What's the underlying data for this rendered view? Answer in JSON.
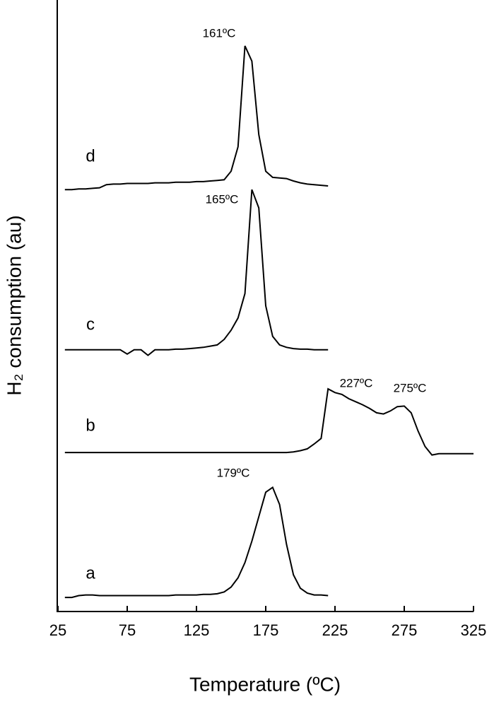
{
  "chart_data": {
    "type": "line",
    "x_label": "Temperature  (ºC)",
    "y_label": "H₂ consumption (au)",
    "xlim": [
      25,
      325
    ],
    "xticks": [
      25,
      75,
      125,
      175,
      225,
      275,
      325
    ],
    "ylim": [
      0,
      100
    ],
    "annotations": [
      "161ºC",
      "165ºC",
      "227ºC",
      "275ºC",
      "179ºC"
    ],
    "series": [
      {
        "name": "a",
        "color": "#000000",
        "x": [
          30,
          35,
          40,
          45,
          50,
          55,
          60,
          65,
          70,
          75,
          80,
          85,
          90,
          95,
          100,
          105,
          110,
          115,
          120,
          125,
          130,
          135,
          140,
          145,
          150,
          155,
          160,
          165,
          170,
          175,
          180,
          185,
          190,
          195,
          200,
          205,
          210,
          215,
          220
        ],
        "values": [
          2.3,
          2.3,
          2.6,
          2.7,
          2.7,
          2.6,
          2.6,
          2.6,
          2.6,
          2.6,
          2.6,
          2.6,
          2.6,
          2.6,
          2.6,
          2.6,
          2.7,
          2.7,
          2.7,
          2.7,
          2.8,
          2.8,
          2.9,
          3.2,
          4.0,
          5.5,
          8.0,
          11.5,
          15.5,
          19.5,
          20.3,
          17.5,
          11,
          6,
          3.8,
          3.0,
          2.7,
          2.7,
          2.6
        ]
      },
      {
        "name": "b",
        "color": "#000000",
        "x": [
          30,
          35,
          40,
          45,
          50,
          55,
          60,
          65,
          70,
          75,
          80,
          85,
          90,
          95,
          100,
          105,
          110,
          115,
          120,
          125,
          130,
          135,
          140,
          145,
          150,
          155,
          160,
          165,
          170,
          175,
          180,
          185,
          190,
          195,
          200,
          205,
          210,
          215,
          220,
          225,
          230,
          235,
          240,
          245,
          250,
          255,
          260,
          265,
          270,
          275,
          280,
          285,
          290,
          295,
          300,
          305,
          310,
          315,
          320,
          325
        ],
        "values": [
          26,
          26,
          26,
          26,
          26,
          26,
          26,
          26,
          26,
          26,
          26,
          26,
          26,
          26,
          26,
          26,
          26,
          26,
          26,
          26,
          26,
          26,
          26,
          26,
          26,
          26,
          26,
          26,
          26,
          26,
          26,
          26,
          26,
          26.1,
          26.3,
          26.6,
          27.4,
          28.3,
          36.4,
          35.8,
          35.5,
          34.8,
          34.3,
          33.8,
          33.2,
          32.5,
          32.3,
          32.8,
          33.5,
          33.6,
          32.5,
          29.5,
          27,
          25.6,
          25.8,
          25.8,
          25.8,
          25.8,
          25.8,
          25.8
        ]
      },
      {
        "name": "c",
        "color": "#000000",
        "x": [
          30,
          35,
          40,
          45,
          50,
          55,
          60,
          65,
          70,
          75,
          80,
          85,
          90,
          95,
          100,
          105,
          110,
          115,
          120,
          125,
          130,
          135,
          140,
          145,
          150,
          155,
          160,
          165,
          170,
          175,
          180,
          185,
          190,
          195,
          200,
          205,
          210,
          215,
          220
        ],
        "values": [
          42.8,
          42.8,
          42.8,
          42.8,
          42.8,
          42.8,
          42.8,
          42.8,
          42.8,
          42.1,
          42.8,
          42.8,
          41.9,
          42.8,
          42.8,
          42.8,
          42.9,
          42.9,
          43.0,
          43.1,
          43.2,
          43.4,
          43.6,
          44.5,
          46,
          48,
          52,
          69,
          66,
          50,
          45,
          43.6,
          43.2,
          43.0,
          42.9,
          42.9,
          42.8,
          42.8,
          42.8
        ]
      },
      {
        "name": "d",
        "color": "#000000",
        "x": [
          30,
          35,
          40,
          45,
          50,
          55,
          60,
          65,
          70,
          75,
          80,
          85,
          90,
          95,
          100,
          105,
          110,
          115,
          120,
          125,
          130,
          135,
          140,
          145,
          150,
          155,
          160,
          165,
          170,
          175,
          180,
          185,
          190,
          195,
          200,
          205,
          210,
          215,
          220
        ],
        "values": [
          69,
          69,
          69.1,
          69.1,
          69.2,
          69.3,
          69.8,
          69.9,
          69.9,
          70,
          70,
          70,
          70,
          70.1,
          70.1,
          70.1,
          70.2,
          70.2,
          70.2,
          70.3,
          70.3,
          70.4,
          70.5,
          70.6,
          72,
          76,
          92.5,
          90,
          78,
          72,
          71,
          70.9,
          70.8,
          70.4,
          70.1,
          69.9,
          69.8,
          69.7,
          69.6
        ]
      }
    ]
  }
}
